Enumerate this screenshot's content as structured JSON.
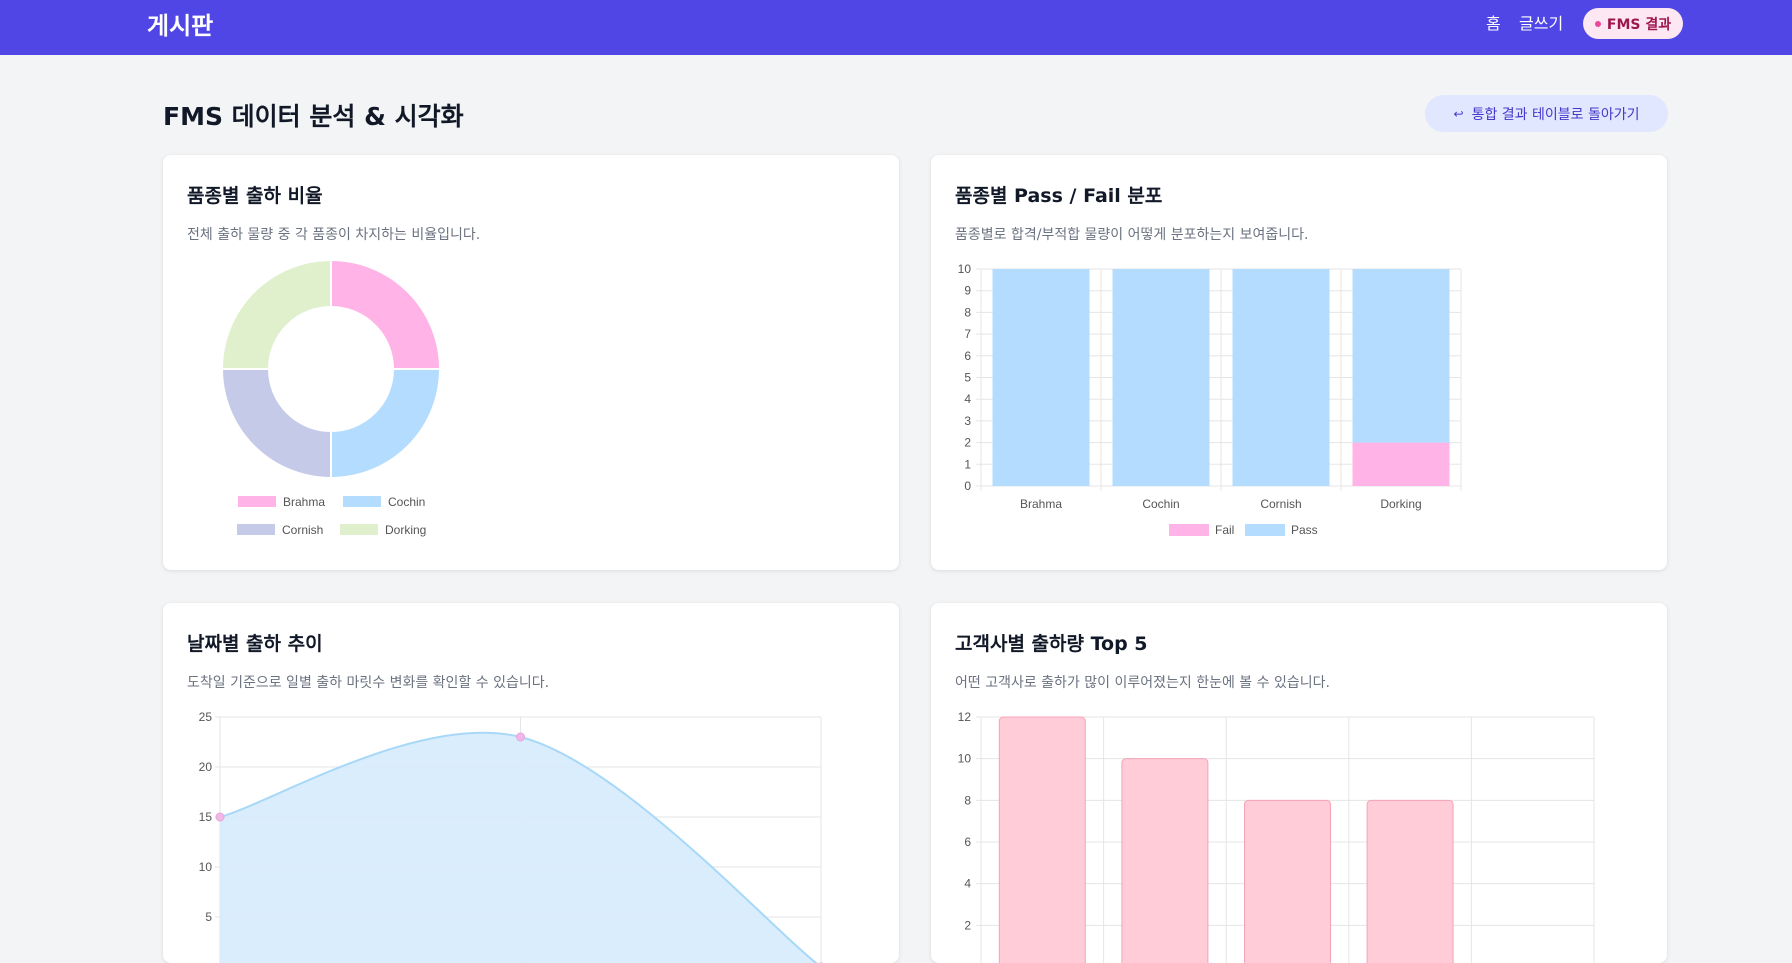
{
  "nav": {
    "brand": "게시판",
    "home": "홈",
    "write": "글쓰기",
    "fms": "FMS 결과"
  },
  "page": {
    "title": "FMS 데이터 분석 & 시각화",
    "back_button": "통합 결과 테이블로 돌아가기"
  },
  "cards": {
    "ratio": {
      "title": "품종별 출하 비율",
      "desc": "전체 출하 물량 중 각 품종이 차지하는 비율입니다."
    },
    "passfail": {
      "title": "품종별 Pass / Fail 분포",
      "desc": "품종별로 합격/부적합 물량이 어떻게 분포하는지 보여줍니다."
    },
    "trend": {
      "title": "날짜별 출하 추이",
      "desc": "도착일 기준으로 일별 출하 마릿수 변화를 확인할 수 있습니다."
    },
    "top5": {
      "title": "고객사별 출하량 Top 5",
      "desc": "어떤 고객사로 출하가 많이 이루어졌는지 한눈에 볼 수 있습니다."
    }
  },
  "chart_data": [
    {
      "type": "pie",
      "donut": true,
      "categories": [
        "Brahma",
        "Cochin",
        "Cornish",
        "Dorking"
      ],
      "values": [
        10,
        10,
        10,
        10
      ],
      "colors": [
        "#ffb3e6",
        "#b3dcff",
        "#c5cae9",
        "#e0f0cd"
      ],
      "legend": "bottom"
    },
    {
      "type": "bar",
      "stacked": true,
      "categories": [
        "Brahma",
        "Cochin",
        "Cornish",
        "Dorking"
      ],
      "series": [
        {
          "name": "Fail",
          "values": [
            0,
            0,
            0,
            2
          ],
          "color": "#ffb3e6"
        },
        {
          "name": "Pass",
          "values": [
            10,
            10,
            10,
            8
          ],
          "color": "#b3dcff"
        }
      ],
      "yticks": [
        "0",
        "1",
        "2",
        "3",
        "4",
        "5",
        "6",
        "7",
        "8",
        "9",
        "10"
      ],
      "ylim": [
        0,
        10
      ],
      "grid": true,
      "legend": "bottom"
    },
    {
      "type": "area",
      "x_index": [
        0,
        1,
        2
      ],
      "values": [
        15,
        23,
        0
      ],
      "yticks": [
        "25",
        "20",
        "15",
        "10",
        "5"
      ],
      "ylim": [
        0,
        25
      ],
      "line_color": "#a8d8f8",
      "fill_color": "#d8ecfc",
      "point_color": "#f0b8e8",
      "grid": true
    },
    {
      "type": "bar",
      "values": [
        12,
        10,
        8,
        8
      ],
      "yticks": [
        "12",
        "10",
        "8",
        "6",
        "4",
        "2"
      ],
      "ylim": [
        0,
        12
      ],
      "bar_color": "#ffccd8",
      "border_color": "#f4a3b8",
      "grid": true
    }
  ]
}
